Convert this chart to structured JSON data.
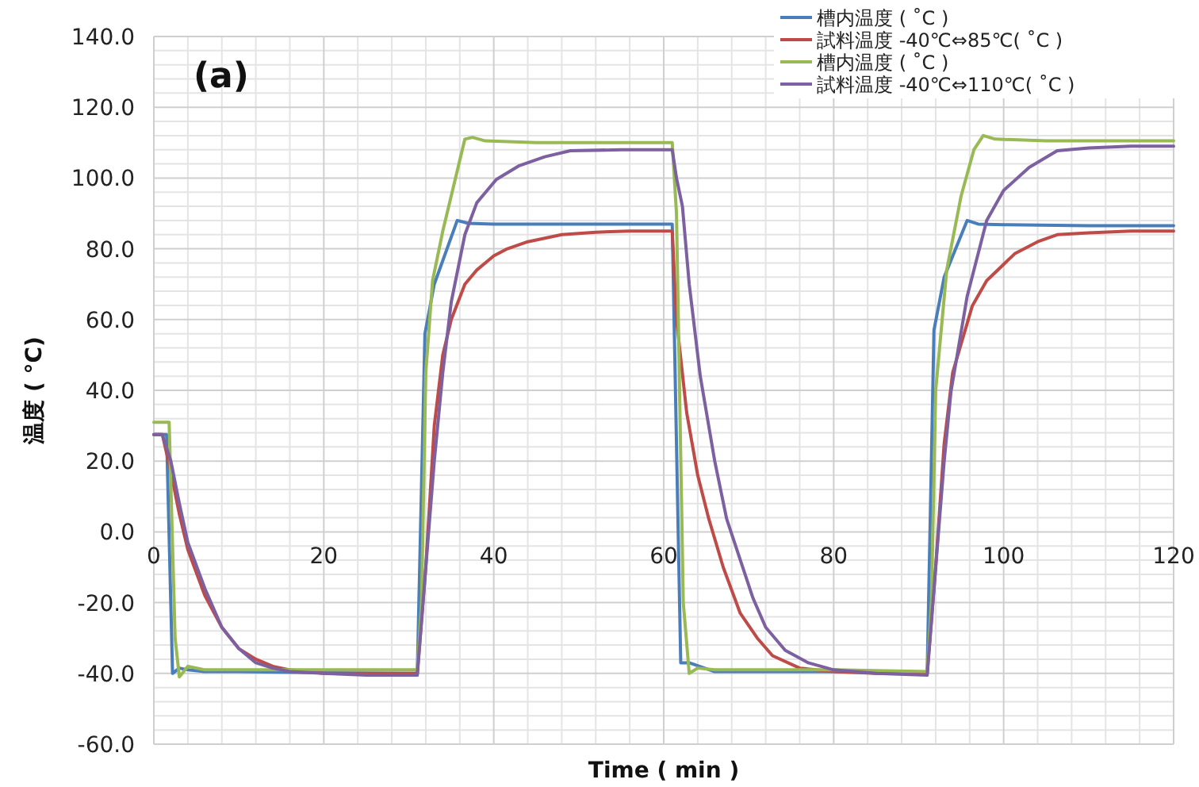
{
  "chart_data": {
    "type": "line",
    "xlabel": "Time ( min )",
    "ylabel": "温度 ( °C)",
    "annotations": [
      "(a)"
    ],
    "xlim": [
      0,
      120
    ],
    "xticks": [
      0,
      20,
      40,
      60,
      80,
      100,
      120
    ],
    "ylim": [
      -60,
      140
    ],
    "yticks": [
      {
        "value": -60,
        "label": "-60.0"
      },
      {
        "value": -40,
        "label": "-40.0"
      },
      {
        "value": -20,
        "label": "-20.0"
      },
      {
        "value": 0,
        "label": "0.0"
      },
      {
        "value": 20,
        "label": "20.0"
      },
      {
        "value": 40,
        "label": "40.0"
      },
      {
        "value": 60,
        "label": "60.0"
      },
      {
        "value": 80,
        "label": "80.0"
      },
      {
        "value": 100,
        "label": "100.0"
      },
      {
        "value": 120,
        "label": "120.0"
      },
      {
        "value": 140,
        "label": "140.0"
      }
    ],
    "grid": true,
    "legend": "top right",
    "marker": "none",
    "line_style": "solid",
    "series": [
      {
        "name": "槽内温度 ( ˚C )",
        "color": "#4a7ebb",
        "x": [
          0,
          1.5,
          2.2,
          3,
          4,
          6,
          10,
          20,
          31,
          31.9,
          33,
          35.7,
          37,
          40,
          50,
          61,
          62,
          63,
          66,
          70,
          80,
          91,
          91.8,
          93,
          95.7,
          97,
          100,
          110,
          120
        ],
        "values": [
          27.5,
          27.5,
          -40,
          -38.5,
          -39,
          -39.5,
          -39.5,
          -39.8,
          -40,
          56,
          70,
          88,
          87.2,
          87,
          87,
          87,
          -37,
          -37,
          -39.5,
          -39.5,
          -39.5,
          -40,
          57,
          72,
          88,
          87,
          86.8,
          86.5,
          86.5
        ]
      },
      {
        "name": "試料温度 -40℃⇔85℃( ˚C )",
        "color": "#be4b48",
        "x": [
          0,
          1,
          2,
          3,
          4,
          6,
          8,
          10,
          12,
          14,
          16,
          20,
          25,
          31,
          32,
          33,
          34,
          35,
          36.6,
          38,
          40,
          41.6,
          44,
          48,
          52,
          56,
          61,
          61.5,
          62.7,
          64,
          65.3,
          67,
          69,
          71,
          72.8,
          76,
          80,
          85,
          91,
          92,
          93,
          94,
          96.3,
          98,
          101.3,
          104,
          106.3,
          110,
          115,
          120
        ],
        "values": [
          27.5,
          27.5,
          17,
          5,
          -5,
          -18,
          -27,
          -33,
          -36,
          -38,
          -39,
          -40,
          -40,
          -40,
          -10,
          30,
          50,
          60,
          70,
          74,
          78,
          80,
          82,
          84,
          84.7,
          85,
          85,
          60,
          33.7,
          16,
          3.7,
          -10,
          -23,
          -30,
          -35,
          -38.5,
          -39.5,
          -40,
          -40,
          -10,
          25,
          45,
          63.8,
          71,
          78.6,
          82,
          84,
          84.5,
          85,
          85
        ]
      },
      {
        "name": "槽内温度 ( ˚C )",
        "color": "#98b954",
        "x": [
          0,
          1.8,
          2.5,
          3,
          4,
          6,
          10,
          20,
          31,
          31.5,
          32,
          32.8,
          34,
          35,
          36.6,
          37.5,
          39,
          45,
          61,
          61.5,
          62.3,
          63,
          64,
          66,
          70,
          80,
          91,
          91.5,
          92,
          93.3,
          95,
          96.5,
          97.6,
          99,
          105,
          120
        ],
        "values": [
          31,
          31,
          -30,
          -41,
          -38,
          -39,
          -39,
          -39,
          -39,
          -20,
          45,
          71,
          85,
          95,
          111,
          111.5,
          110.5,
          110,
          110,
          90,
          -20,
          -40,
          -38.5,
          -39,
          -39,
          -39,
          -39.5,
          -20,
          40,
          74,
          95,
          108,
          112,
          111,
          110.5,
          110.5
        ]
      },
      {
        "name": "試料温度  -40℃⇔110℃( ˚C )",
        "color": "#7d60a0",
        "x": [
          0,
          1,
          2,
          3,
          4,
          6,
          8,
          10,
          12,
          14,
          16,
          20,
          25,
          31,
          32,
          33,
          34,
          35,
          36.6,
          38,
          40.3,
          43,
          46,
          49,
          55,
          61,
          61.5,
          62.2,
          63,
          64.3,
          66,
          67.4,
          70.5,
          72,
          74.3,
          77,
          80,
          85,
          91,
          92,
          93,
          93.8,
          95.7,
          98,
          100,
          103,
          106.3,
          110,
          115,
          120
        ],
        "values": [
          27.5,
          27.5,
          20,
          8,
          -3,
          -16,
          -27,
          -33,
          -37,
          -38.5,
          -39.5,
          -40,
          -40.5,
          -40.5,
          -10,
          20,
          45,
          65,
          84,
          93,
          99.6,
          103.5,
          106,
          107.7,
          108,
          108,
          100,
          92,
          70,
          44,
          20,
          3.7,
          -18.7,
          -27,
          -33.5,
          -37,
          -39,
          -40,
          -40.5,
          -10,
          20,
          39.6,
          66.5,
          88,
          96.5,
          103,
          107.7,
          108.5,
          109,
          109
        ]
      }
    ]
  }
}
